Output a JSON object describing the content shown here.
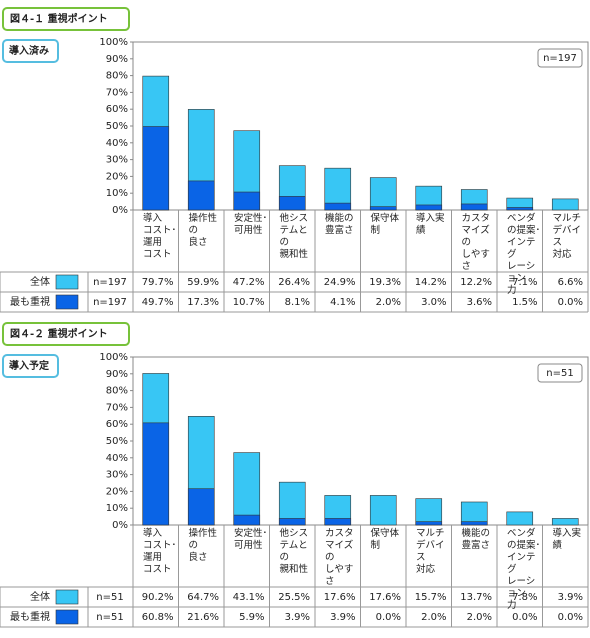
{
  "chart_data": [
    {
      "type": "bar",
      "title": "図４-１ 重視ポイント",
      "subtitle": "導入済み",
      "annotation": "n=197",
      "categories": [
        "導入\nコスト･\n運用\nコスト",
        "操作性の\n良さ",
        "安定性･\n可用性",
        "他シス\nテムとの\n親和性",
        "機能の\n豊富さ",
        "保守体制",
        "導入実績",
        "カスタ\nマイズの\nしやすさ",
        "ベンダ\nの提案･\nインテグ\nレーション\n力",
        "マルチ\nデバイス\n対応"
      ],
      "series": [
        {
          "name": "全体",
          "color": "#38c6f4",
          "n_label": "n=197",
          "values": [
            79.7,
            59.9,
            47.2,
            26.4,
            24.9,
            19.3,
            14.2,
            12.2,
            7.1,
            6.6
          ],
          "value_labels": [
            "79.7%",
            "59.9%",
            "47.2%",
            "26.4%",
            "24.9%",
            "19.3%",
            "14.2%",
            "12.2%",
            "7.1%",
            "6.6%"
          ]
        },
        {
          "name": "最も重視",
          "color": "#0a64e6",
          "n_label": "n=197",
          "values": [
            49.7,
            17.3,
            10.7,
            8.1,
            4.1,
            2.0,
            3.0,
            3.6,
            1.5,
            0.0
          ],
          "value_labels": [
            "49.7%",
            "17.3%",
            "10.7%",
            "8.1%",
            "4.1%",
            "2.0%",
            "3.0%",
            "3.6%",
            "1.5%",
            "0.0%"
          ]
        }
      ],
      "ylim": [
        0,
        100
      ],
      "yticks": [
        {
          "value": 0,
          "label": "0%"
        },
        {
          "value": 10,
          "label": "10%"
        },
        {
          "value": 20,
          "label": "20%"
        },
        {
          "value": 30,
          "label": "30%"
        },
        {
          "value": 40,
          "label": "40%"
        },
        {
          "value": 50,
          "label": "50%"
        },
        {
          "value": 60,
          "label": "60%"
        },
        {
          "value": 70,
          "label": "70%"
        },
        {
          "value": 80,
          "label": "80%"
        },
        {
          "value": 90,
          "label": "90%"
        },
        {
          "value": 100,
          "label": "100%"
        }
      ]
    },
    {
      "type": "bar",
      "title": "図４-２ 重視ポイント",
      "subtitle": "導入予定",
      "annotation": "n=51",
      "categories": [
        "導入\nコスト･\n運用\nコスト",
        "操作性の\n良さ",
        "安定性･\n可用性",
        "他シス\nテムとの\n親和性",
        "カスタ\nマイズの\nしやすさ",
        "保守体制",
        "マルチ\nデバイス\n対応",
        "機能の\n豊富さ",
        "ベンダ\nの提案･\nインテグ\nレーション\n力",
        "導入実績"
      ],
      "series": [
        {
          "name": "全体",
          "color": "#38c6f4",
          "n_label": "n=51",
          "values": [
            90.2,
            64.7,
            43.1,
            25.5,
            17.6,
            17.6,
            15.7,
            13.7,
            7.8,
            3.9
          ],
          "value_labels": [
            "90.2%",
            "64.7%",
            "43.1%",
            "25.5%",
            "17.6%",
            "17.6%",
            "15.7%",
            "13.7%",
            "7.8%",
            "3.9%"
          ]
        },
        {
          "name": "最も重視",
          "color": "#0a64e6",
          "n_label": "n=51",
          "values": [
            60.8,
            21.6,
            5.9,
            3.9,
            3.9,
            0.0,
            2.0,
            2.0,
            0.0,
            0.0
          ],
          "value_labels": [
            "60.8%",
            "21.6%",
            "5.9%",
            "3.9%",
            "3.9%",
            "0.0%",
            "2.0%",
            "2.0%",
            "0.0%",
            "0.0%"
          ]
        }
      ],
      "ylim": [
        0,
        100
      ],
      "yticks": [
        {
          "value": 0,
          "label": "0%"
        },
        {
          "value": 10,
          "label": "10%"
        },
        {
          "value": 20,
          "label": "20%"
        },
        {
          "value": 30,
          "label": "30%"
        },
        {
          "value": 40,
          "label": "40%"
        },
        {
          "value": 50,
          "label": "50%"
        },
        {
          "value": 60,
          "label": "60%"
        },
        {
          "value": 70,
          "label": "70%"
        },
        {
          "value": 80,
          "label": "80%"
        },
        {
          "value": 90,
          "label": "90%"
        },
        {
          "value": 100,
          "label": "100%"
        }
      ]
    }
  ]
}
